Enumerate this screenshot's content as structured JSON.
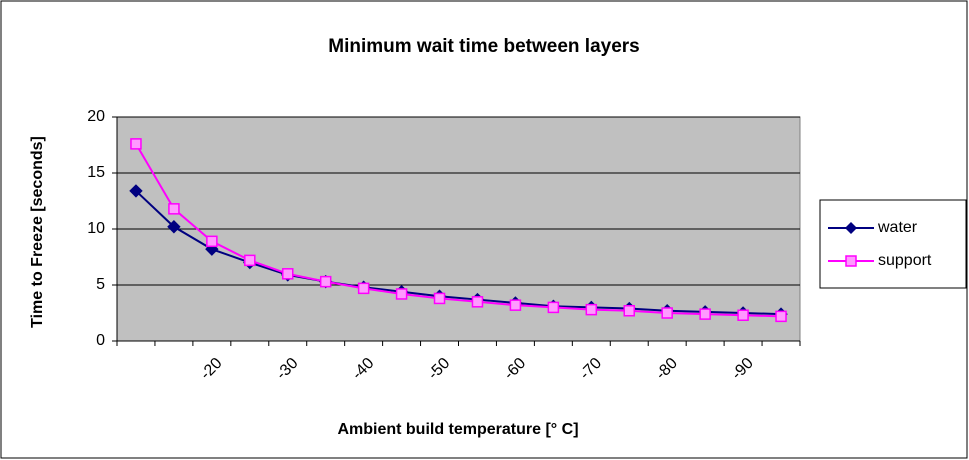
{
  "chart_data": {
    "type": "line",
    "title": "Minimum wait time between layers",
    "x_label": "Ambient build temperature [° C]",
    "y_label": "Time to Freeze [seconds]",
    "categories": [
      null,
      null,
      "-20",
      null,
      "-30",
      null,
      "-40",
      null,
      "-50",
      null,
      "-60",
      null,
      "-70",
      null,
      "-80",
      null,
      "-90",
      null
    ],
    "series": [
      {
        "name": "water",
        "color": "#000080",
        "marker": "diamond",
        "values": [
          13.4,
          10.2,
          8.2,
          7.0,
          5.9,
          5.3,
          4.8,
          4.4,
          4.0,
          3.7,
          3.4,
          3.1,
          3.0,
          2.9,
          2.7,
          2.6,
          2.5,
          2.4
        ]
      },
      {
        "name": "support",
        "color": "#ff00ff",
        "marker": "square",
        "values": [
          17.6,
          11.8,
          8.9,
          7.2,
          6.0,
          5.3,
          4.7,
          4.2,
          3.8,
          3.5,
          3.2,
          3.0,
          2.8,
          2.7,
          2.5,
          2.4,
          2.3,
          2.2
        ]
      }
    ],
    "ylim": [
      0,
      20
    ],
    "yticks": [
      0,
      5,
      10,
      15,
      20
    ],
    "grid": true,
    "legend": "right"
  }
}
